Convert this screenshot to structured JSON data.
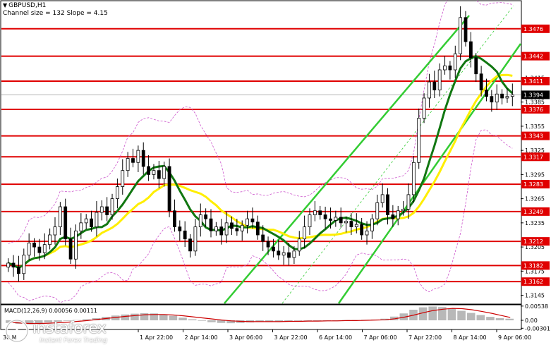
{
  "header": {
    "symbol": "GBPUSD,H1",
    "channel_info": "Channel size = 132 Slope = 4.15"
  },
  "macd": {
    "label": "MACD(12,26,9) 0.00056 0.00111"
  },
  "logo": {
    "brand": "instaforex",
    "tagline": "Instant Forex Trading"
  },
  "colors": {
    "level_line": "#e00000",
    "channel": "#33cc33",
    "ma_fast": "#117711",
    "ma_slow": "#ffee00",
    "bollinger": "#cc55cc",
    "candles": "#000000",
    "macd_hist": "#b8b8b8",
    "macd_signal": "#cc0000",
    "price_badge_bg": "#000000"
  },
  "chart_data": {
    "type": "candlestick",
    "price_axis": {
      "ylim": [
        1.3135,
        1.351
      ],
      "ticks": [
        "1.3145",
        "1.3175",
        "1.3205",
        "1.3235",
        "1.3265",
        "1.3295",
        "1.3325",
        "1.3355",
        "1.3385",
        "1.3415"
      ]
    },
    "time_axis_labels": [
      "1 Apr 22:00",
      "2 Apr 14:00",
      "3 Apr 06:00",
      "3 Apr 22:00",
      "6 Apr 14:00",
      "7 Apr 06:00",
      "7 Apr 22:00",
      "8 Apr 14:00",
      "9 Apr 06:00"
    ],
    "time_axis_left_partial": "30 M",
    "levels": [
      {
        "label": "1.3476",
        "value": 1.3476
      },
      {
        "label": "1.3442",
        "value": 1.3442
      },
      {
        "label": "1.3411",
        "value": 1.3411
      },
      {
        "label": "1.3376",
        "value": 1.3376
      },
      {
        "label": "1.3343",
        "value": 1.3343
      },
      {
        "label": "1.3317",
        "value": 1.3317
      },
      {
        "label": "1.3283",
        "value": 1.3283
      },
      {
        "label": "1.3249",
        "value": 1.3249
      },
      {
        "label": "1.3212",
        "value": 1.3212
      },
      {
        "label": "1.3182",
        "value": 1.3182
      },
      {
        "label": "1.3162",
        "value": 1.3162
      }
    ],
    "current_price": {
      "label": "1.3394",
      "value": 1.3394
    },
    "closes": [
      1.3185,
      1.318,
      1.3172,
      1.3195,
      1.321,
      1.3205,
      1.3198,
      1.3208,
      1.322,
      1.323,
      1.3255,
      1.3215,
      1.319,
      1.3225,
      1.3235,
      1.324,
      1.323,
      1.3248,
      1.3255,
      1.3245,
      1.3265,
      1.328,
      1.33,
      1.3315,
      1.331,
      1.3325,
      1.3305,
      1.3295,
      1.33,
      1.329,
      1.3305,
      1.325,
      1.323,
      1.3225,
      1.3215,
      1.32,
      1.323,
      1.3245,
      1.324,
      1.3225,
      1.323,
      1.322,
      1.3235,
      1.3228,
      1.3225,
      1.3232,
      1.324,
      1.3236,
      1.322,
      1.3212,
      1.3205,
      1.32,
      1.3195,
      1.3198,
      1.3192,
      1.32,
      1.3215,
      1.323,
      1.3245,
      1.325,
      1.3245,
      1.324,
      1.3238,
      1.3242,
      1.3235,
      1.3237,
      1.323,
      1.3233,
      1.322,
      1.3225,
      1.324,
      1.326,
      1.327,
      1.3245,
      1.324,
      1.325,
      1.3252,
      1.327,
      1.331,
      1.3365,
      1.339,
      1.341,
      1.34,
      1.3425,
      1.343,
      1.3425,
      1.3445,
      1.349,
      1.346,
      1.344,
      1.342,
      1.34,
      1.3392,
      1.3385,
      1.3395,
      1.339,
      1.3392,
      1.3394
    ],
    "macd": {
      "ylim": [
        -0.0032,
        0.0056
      ],
      "ticks": [
        "0.00538",
        "0.00",
        "-0.00301"
      ],
      "histogram": [
        -0.001,
        -0.0013,
        -0.0015,
        -0.0012,
        -0.0008,
        -0.0005,
        -0.0002,
        0.0001,
        0.0004,
        0.0008,
        0.0013,
        0.0018,
        0.0022,
        0.0025,
        0.0027,
        0.0026,
        0.0022,
        0.0017,
        0.001,
        0.0004,
        -0.0002,
        -0.0007,
        -0.001,
        -0.0011,
        -0.001,
        -0.0008,
        -0.0006,
        -0.0005,
        -0.0004,
        -0.0003,
        -0.0002,
        -0.0001,
        -0.0001,
        0.0,
        0.0,
        0.0001,
        0.0001,
        0.0002,
        0.0003,
        0.0006,
        0.0014,
        0.0026,
        0.004,
        0.0049,
        0.0052,
        0.005,
        0.0044,
        0.0036,
        0.0028,
        0.002,
        0.0013,
        0.0008,
        0.0006
      ],
      "signal": [
        -0.0008,
        -0.001,
        -0.0012,
        -0.0012,
        -0.0011,
        -0.0009,
        -0.0007,
        -0.0004,
        -0.0001,
        0.0003,
        0.0007,
        0.0011,
        0.0015,
        0.0018,
        0.0021,
        0.0022,
        0.0022,
        0.002,
        0.0017,
        0.0013,
        0.0009,
        0.0005,
        0.0001,
        -0.0002,
        -0.0004,
        -0.0005,
        -0.0005,
        -0.0005,
        -0.0005,
        -0.0004,
        -0.0004,
        -0.0003,
        -0.0003,
        -0.0002,
        -0.0002,
        -0.0001,
        -0.0001,
        0.0,
        0.0001,
        0.0002,
        0.0006,
        0.0012,
        0.002,
        0.0029,
        0.0037,
        0.0042,
        0.0045,
        0.0044,
        0.004,
        0.0034,
        0.0027,
        0.0019,
        0.0011
      ]
    }
  }
}
